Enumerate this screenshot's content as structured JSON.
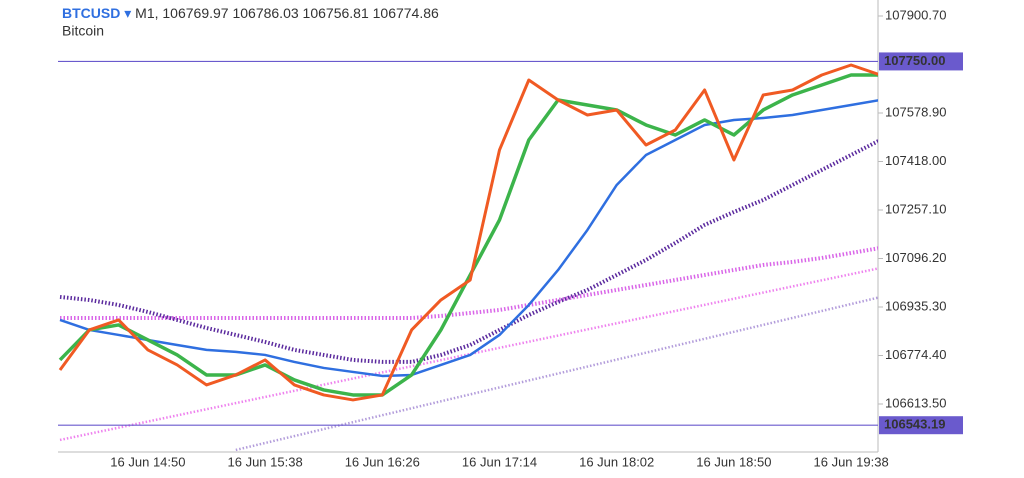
{
  "chart_data": {
    "type": "line",
    "symbol": "BTCUSD",
    "timeframe": "M1",
    "ohlc": [
      106769.97,
      106786.03,
      106756.81,
      106774.86
    ],
    "subtitle": "Bitcoin",
    "categories": [
      null,
      null,
      null,
      "16 Jun 14:50",
      null,
      null,
      null,
      "16 Jun 15:38",
      null,
      null,
      null,
      "16 Jun 16:26",
      null,
      null,
      null,
      "16 Jun 17:14",
      null,
      null,
      null,
      "16 Jun 18:02",
      null,
      null,
      null,
      "16 Jun 18:50",
      null,
      null,
      null,
      "16 Jun 19:38",
      null
    ],
    "ylim": [
      106454.3,
      107953.8
    ],
    "yticks": [
      {
        "value": 106613.5,
        "label": "106613.50"
      },
      {
        "value": 106774.4,
        "label": "106774.40"
      },
      {
        "value": 106935.3,
        "label": "106935.30"
      },
      {
        "value": 107096.2,
        "label": "107096.20"
      },
      {
        "value": 107257.1,
        "label": "107257.10"
      },
      {
        "value": 107418.0,
        "label": "107418.00"
      },
      {
        "value": 107578.9,
        "label": "107578.90"
      },
      {
        "value": 107900.7,
        "label": "107900.70"
      }
    ],
    "levels": [
      {
        "value": 107750.0,
        "label": "107750.00"
      },
      {
        "value": 106543.19,
        "label": "106543.19"
      }
    ],
    "level_color": "#6a5acd",
    "series": [
      {
        "color": "#b39ddb",
        "style": "dotted",
        "width": 2.5,
        "values": [
          null,
          null,
          null,
          null,
          null,
          null,
          106461.1,
          106484.2,
          106507.2,
          106530.3,
          106553.3,
          106576.4,
          106599.4,
          106622.5,
          106645.5,
          106668.6,
          106691.6,
          106714.7,
          106737.7,
          106760.8,
          106783.8,
          106806.9,
          106829.9,
          106853.0,
          106876.0,
          106899.1,
          106922.1,
          106945.2,
          106968.2
        ]
      },
      {
        "color": "#ee82ee",
        "style": "dotted",
        "width": 2.5,
        "values": [
          106494.3,
          106514.7,
          106535.0,
          106555.4,
          106575.8,
          106596.2,
          106616.5,
          106636.9,
          106657.3,
          106677.6,
          106698.0,
          106718.4,
          106738.7,
          106759.1,
          106779.5,
          106799.9,
          106820.2,
          106840.6,
          106861.0,
          106881.3,
          106901.7,
          106922.1,
          106942.4,
          106962.8,
          106983.2,
          107003.6,
          107023.9,
          107044.3,
          107064.7
        ]
      },
      {
        "color": "#d966e8",
        "style": "dotted",
        "width": 4,
        "values": [
          106899.0,
          106899.0,
          106899.0,
          106899.0,
          106899.0,
          106899.0,
          106899.0,
          106899.0,
          106899.0,
          106899.0,
          106899.0,
          106899.0,
          106899.0,
          106905.6,
          106915.6,
          106925.5,
          106942.1,
          106958.7,
          106975.3,
          106991.9,
          107008.4,
          107025.0,
          107041.6,
          107058.2,
          107074.8,
          107084.8,
          107098.0,
          107114.6,
          107131.2
        ]
      },
      {
        "color": "#5b2a9e",
        "style": "dotted",
        "width": 4,
        "values": [
          106968.7,
          106958.7,
          106942.1,
          106918.9,
          106892.4,
          106865.8,
          106842.6,
          106819.4,
          106793.0,
          106776.3,
          106759.7,
          106753.1,
          106753.1,
          106776.3,
          106809.4,
          106859.2,
          106909.0,
          106952.1,
          106991.9,
          107041.6,
          107091.4,
          107147.8,
          107207.5,
          107250.6,
          107290.4,
          107340.1,
          107390.0,
          107439.7,
          107489.4
        ]
      },
      {
        "color": "#2f6fe0",
        "style": "solid",
        "width": 2.5,
        "values": [
          106892.4,
          106859.2,
          106842.6,
          106826.0,
          106809.4,
          106793.0,
          106786.3,
          106776.3,
          106753.1,
          106733.2,
          106719.9,
          106706.6,
          106709.9,
          106743.1,
          106776.3,
          106842.6,
          106942.1,
          107058.2,
          107190.9,
          107340.1,
          107439.7,
          107489.4,
          107539.2,
          107555.8,
          107562.4,
          107572.3,
          107588.9,
          107605.5,
          107622.1
        ]
      },
      {
        "color": "#3cb44b",
        "style": "solid",
        "width": 3.5,
        "values": [
          106759.7,
          106859.2,
          106875.8,
          106826.0,
          106776.3,
          106709.9,
          106709.9,
          106743.1,
          106693.3,
          106660.2,
          106643.6,
          106643.6,
          106709.9,
          106859.2,
          107041.6,
          107224.1,
          107489.4,
          107622.1,
          107605.5,
          107588.9,
          107539.2,
          107506.0,
          107555.8,
          107506.0,
          107588.9,
          107638.7,
          107671.9,
          107705.0,
          107705.0
        ]
      },
      {
        "color": "#f05a23",
        "style": "solid",
        "width": 3,
        "values": [
          106726.5,
          106859.2,
          106892.4,
          106793.0,
          106743.1,
          106676.8,
          106709.9,
          106759.7,
          106676.8,
          106643.6,
          106627.0,
          106643.6,
          106859.2,
          106958.7,
          107025.0,
          107456.3,
          107688.4,
          107622.1,
          107572.3,
          107588.9,
          107472.8,
          107522.6,
          107655.3,
          107423.1,
          107638.7,
          107655.3,
          107705.0,
          107738.2,
          107705.0
        ]
      }
    ]
  }
}
